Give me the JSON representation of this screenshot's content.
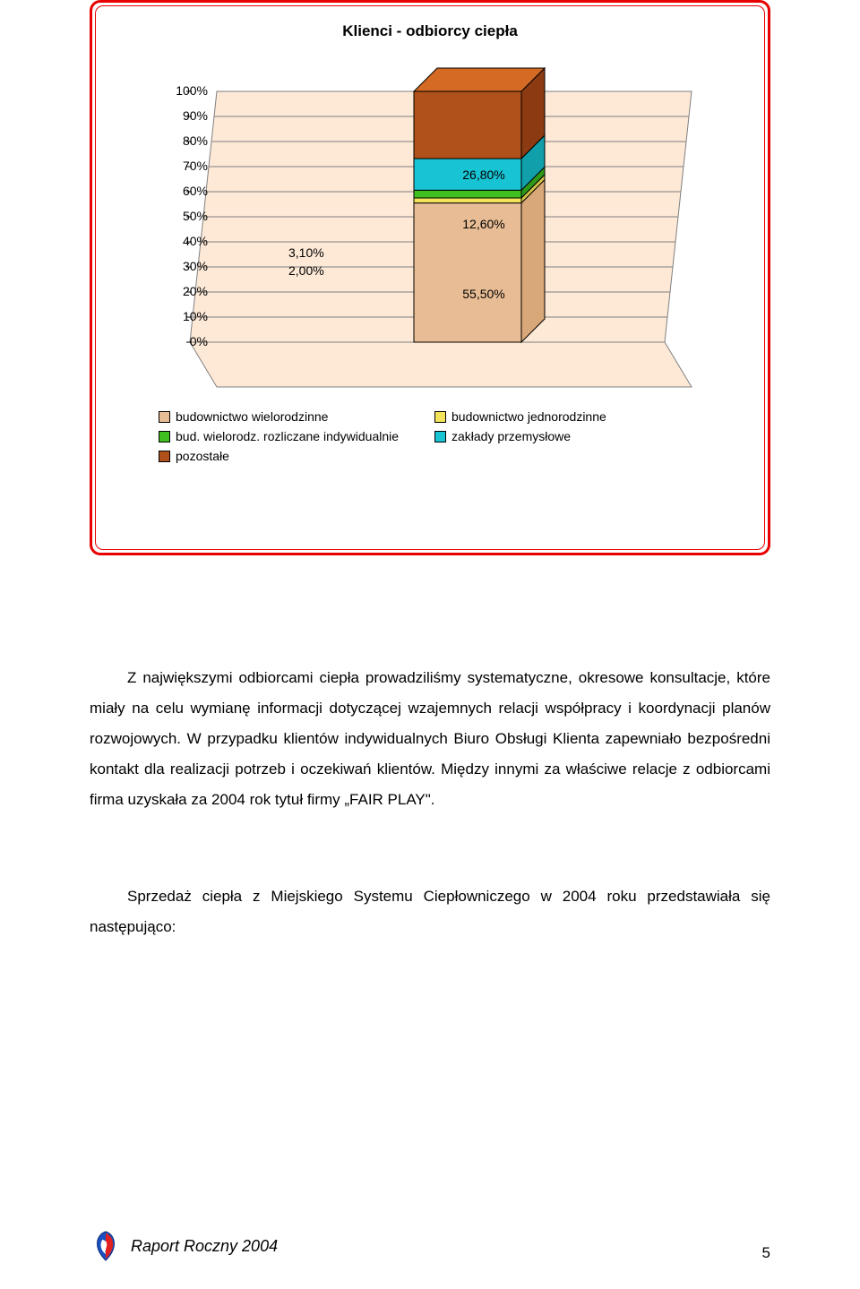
{
  "chart": {
    "title": "Klienci - odbiorcy ciepła",
    "frame_color": "#e80000",
    "backwall_fill": "#fde9d6",
    "backwall_stroke": "#808080",
    "floor_fill": "#fde9d6",
    "y_ticks": [
      "0%",
      "10%",
      "20%",
      "30%",
      "40%",
      "50%",
      "60%",
      "70%",
      "80%",
      "90%",
      "100%"
    ],
    "segments": [
      {
        "key": "budownictwo_wielorodzinne",
        "value": 55.5,
        "label": "55,50%",
        "top_color": "#f5d5b3",
        "front_color": "#e8bd95",
        "side_color": "#d8a878"
      },
      {
        "key": "budownictwo_jednorodzinne",
        "value": 2.0,
        "label": "2,00%",
        "top_color": "#fff68f",
        "front_color": "#f2e35a",
        "side_color": "#d4c548"
      },
      {
        "key": "bud_wielorodz_rozliczane",
        "value": 3.1,
        "label": "3,10%",
        "top_color": "#5bea3a",
        "front_color": "#3fbf20",
        "side_color": "#2f9818"
      },
      {
        "key": "zaklady_przemyslowe",
        "value": 12.6,
        "label": "12,60%",
        "top_color": "#4de5f2",
        "front_color": "#18c3d3",
        "side_color": "#109fab"
      },
      {
        "key": "pozostale",
        "value": 26.8,
        "label": "26,80%",
        "top_color": "#d46a24",
        "front_color": "#b0501a",
        "side_color": "#8b3a12"
      }
    ],
    "side_label_1": "3,10%",
    "side_label_2": "2,00%",
    "legend": [
      {
        "swatch": "#e8bd95",
        "label": "budownictwo wielorodzinne"
      },
      {
        "swatch": "#f2e35a",
        "label": "budownictwo jednorodzinne"
      },
      {
        "swatch": "#3fbf20",
        "label": "bud. wielorodz. rozliczane indywidualnie"
      },
      {
        "swatch": "#18c3d3",
        "label": "zakłady przemysłowe"
      },
      {
        "swatch": "#b0501a",
        "label": "pozostałe"
      }
    ]
  },
  "paragraphs": {
    "p1": "Z największymi odbiorcami ciepła prowadziliśmy systematyczne, okresowe konsultacje, które miały na celu wymianę informacji dotyczącej wzajemnych relacji współpracy i koordynacji planów rozwojowych. W przypadku klientów indywidualnych Biuro Obsługi Klienta zapewniało bezpośredni kontakt dla realizacji potrzeb i oczekiwań klientów. Między innymi za właściwe relacje z odbiorcami firma uzyskała za 2004 rok tytuł firmy „FAIR PLAY\".",
    "p2": "Sprzedaż ciepła z Miejskiego Systemu Ciepłowniczego w 2004 roku przedstawiała się następująco:"
  },
  "footer": {
    "report_label": "Raport Roczny 2004",
    "page_number": "5"
  }
}
